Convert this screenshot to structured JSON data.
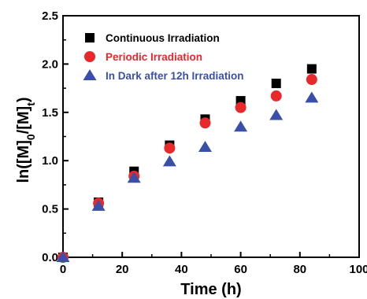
{
  "chart_data": {
    "type": "scatter",
    "xlabel": "Time (h)",
    "ylabel": {
      "text": "ln([M]0/[M]t)",
      "prefix": "ln([M]",
      "sub1": "0",
      "mid": "/[M]",
      "sub2": "t",
      "suffix": ")"
    },
    "xlim": [
      0,
      100
    ],
    "ylim": [
      0,
      2.5
    ],
    "xticks": [
      "0",
      "20",
      "40",
      "60",
      "80",
      "100"
    ],
    "yticks": [
      "0.0",
      "0.5",
      "1.0",
      "1.5",
      "2.0",
      "2.5"
    ],
    "grid": false,
    "legend_position": "top-left",
    "series": [
      {
        "name": "Continuous Irradiation",
        "marker": "square",
        "color": "#000000",
        "x": [
          0,
          12,
          24,
          36,
          48,
          60,
          72,
          84
        ],
        "y": [
          0,
          0.57,
          0.89,
          1.16,
          1.43,
          1.62,
          1.8,
          1.95
        ]
      },
      {
        "name": "Periodic Irradiation",
        "marker": "circle",
        "color": "#e8282b",
        "x": [
          0,
          12,
          24,
          36,
          48,
          60,
          72,
          84
        ],
        "y": [
          0,
          0.56,
          0.84,
          1.13,
          1.39,
          1.55,
          1.67,
          1.84
        ]
      },
      {
        "name": "In Dark after 12h Irradiation",
        "marker": "triangle",
        "color": "#3a4fa8",
        "x": [
          0,
          12,
          24,
          36,
          48,
          60,
          72,
          84
        ],
        "y": [
          0,
          0.53,
          0.82,
          0.99,
          1.14,
          1.35,
          1.47,
          1.65
        ]
      }
    ]
  }
}
